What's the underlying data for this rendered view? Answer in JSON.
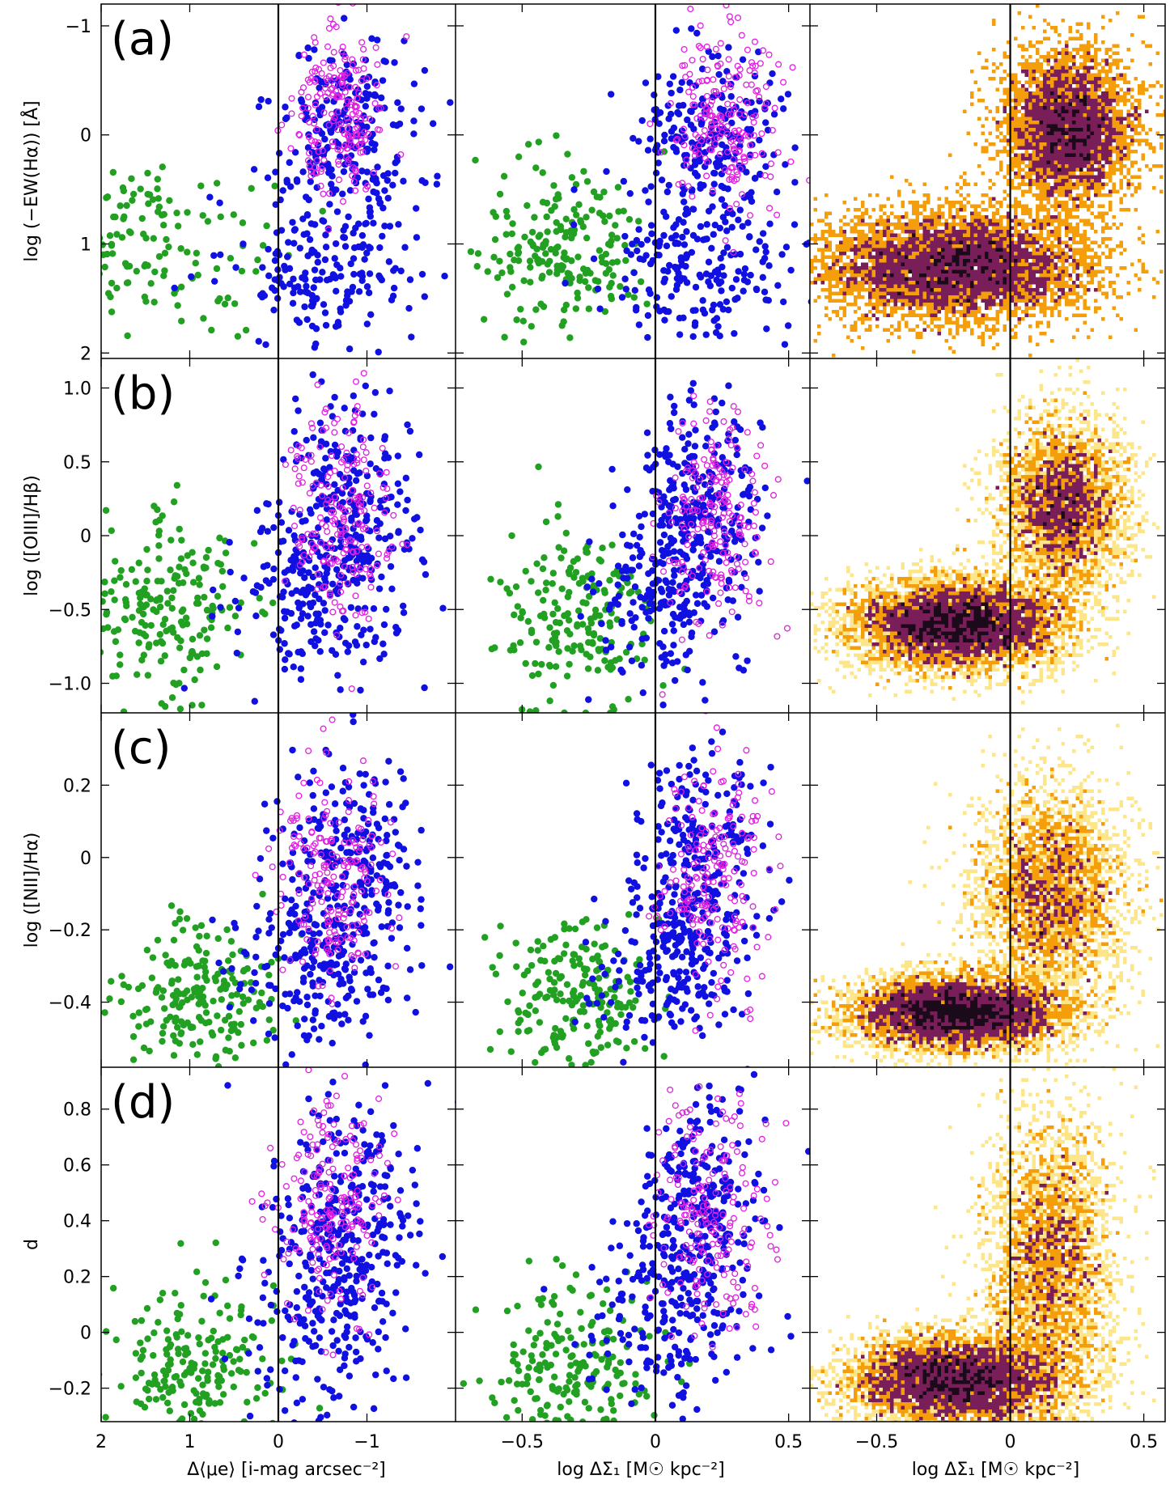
{
  "chart_data": {
    "type": "scatter",
    "layout": {
      "rows": 4,
      "cols": 3,
      "shared_x_per_column": true,
      "shared_y_per_row": true
    },
    "colors": {
      "green": "#22a022",
      "blue": "#1010e0",
      "magenta_open": "#e020e0",
      "density_low": "#fde68a",
      "density_mid": "#f59e0b",
      "density_high": "#7a1e5a",
      "density_max": "#1a0a1a",
      "divider": "#000000"
    },
    "columns": [
      {
        "name": "col1",
        "xlabel": "Δ⟨μe⟩ [i-mag arcsec⁻²]",
        "xlim": [
          2,
          -2
        ],
        "xticks": [
          2,
          1,
          0,
          -1
        ],
        "xtick_labels": [
          "2",
          "1",
          "0",
          "−1"
        ],
        "xreversed": true,
        "vline": 0
      },
      {
        "name": "col2",
        "xlabel": "log ΔΣ₁ [M☉ kpc⁻²]",
        "xlim": [
          -0.75,
          0.58
        ],
        "xticks": [
          -0.5,
          0,
          0.5
        ],
        "xtick_labels": [
          "−0.5",
          "0",
          "0.5"
        ],
        "vline": 0
      },
      {
        "name": "col3",
        "xlabel": "log ΔΣ₁ [M☉ kpc⁻²]",
        "xlim": [
          -0.75,
          0.58
        ],
        "xticks": [
          -0.5,
          0,
          0.5
        ],
        "xtick_labels": [
          "−0.5",
          "0",
          "0.5"
        ],
        "vline": 0,
        "panel_style": "density"
      }
    ],
    "rows": [
      {
        "label": "(a)",
        "ylabel": "log (−EW(Hα)) [Å]",
        "ylim": [
          2.05,
          -1.2
        ],
        "yreversed": true,
        "yticks": [
          -1,
          0,
          1,
          2
        ],
        "ytick_labels": [
          "−1",
          "0",
          "1",
          "2"
        ],
        "groups": {
          "green": {
            "x1": [
              1.7,
              0.8
            ],
            "x2": [
              -0.35,
              -0.15
            ],
            "y": [
              1.05,
              0.4
            ],
            "n": 200
          },
          "blue_low": {
            "x1": [
              -0.6,
              0.55
            ],
            "x2": [
              0.15,
              0.18
            ],
            "y": [
              1.2,
              0.35
            ],
            "n": 200
          },
          "blue_high": {
            "x1": [
              -0.8,
              0.4
            ],
            "x2": [
              0.2,
              0.15
            ],
            "y": [
              0.0,
              0.4
            ],
            "n": 230
          },
          "magenta": {
            "x1": [
              -0.65,
              0.25
            ],
            "x2": [
              0.25,
              0.1
            ],
            "y": [
              -0.15,
              0.4
            ],
            "n": 200
          }
        },
        "density": [
          {
            "x": -0.2,
            "y": 1.2,
            "sx": 0.25,
            "sy": 0.25,
            "w": 1.0
          },
          {
            "x": 0.22,
            "y": -0.05,
            "sx": 0.12,
            "sy": 0.35,
            "w": 0.7
          }
        ]
      },
      {
        "label": "(b)",
        "ylabel": "log ([OIII]/Hβ)",
        "ylim": [
          -1.2,
          1.2
        ],
        "yticks": [
          -1.0,
          -0.5,
          0,
          0.5,
          1.0
        ],
        "ytick_labels": [
          "−1.0",
          "−0.5",
          "0",
          "0.5",
          "1.0"
        ],
        "groups": {
          "green": {
            "x1": [
              1.2,
              0.45
            ],
            "x2": [
              -0.3,
              -0.15
            ],
            "y": [
              -0.55,
              0.3
            ],
            "n": 200
          },
          "blue_low": {
            "x1": [
              -0.5,
              0.45
            ],
            "x2": [
              0.05,
              0.14
            ],
            "y": [
              -0.4,
              0.3
            ],
            "n": 200
          },
          "blue_high": {
            "x1": [
              -0.8,
              0.4
            ],
            "x2": [
              0.18,
              0.12
            ],
            "y": [
              0.2,
              0.35
            ],
            "n": 230
          },
          "magenta": {
            "x1": [
              -0.7,
              0.3
            ],
            "x2": [
              0.22,
              0.1
            ],
            "y": [
              0.15,
              0.35
            ],
            "n": 200
          }
        },
        "density": [
          {
            "x": -0.2,
            "y": -0.6,
            "sx": 0.2,
            "sy": 0.15,
            "w": 1.0
          },
          {
            "x": 0.2,
            "y": 0.2,
            "sx": 0.12,
            "sy": 0.3,
            "w": 0.6
          }
        ]
      },
      {
        "label": "(c)",
        "ylabel": "log ([NII]/Hα)",
        "ylim": [
          -0.58,
          0.4
        ],
        "yticks": [
          -0.4,
          -0.2,
          0,
          0.2
        ],
        "ytick_labels": [
          "−0.4",
          "−0.2",
          "0",
          "0.2"
        ],
        "groups": {
          "green": {
            "x1": [
              0.9,
              0.45
            ],
            "x2": [
              -0.3,
              -0.15
            ],
            "y": [
              -0.38,
              0.1
            ],
            "n": 200
          },
          "blue_low": {
            "x1": [
              -0.5,
              0.45
            ],
            "x2": [
              0.05,
              0.14
            ],
            "y": [
              -0.3,
              0.12
            ],
            "n": 200
          },
          "blue_high": {
            "x1": [
              -0.8,
              0.4
            ],
            "x2": [
              0.18,
              0.12
            ],
            "y": [
              0.0,
              0.15
            ],
            "n": 230
          },
          "magenta": {
            "x1": [
              -0.6,
              0.3
            ],
            "x2": [
              0.22,
              0.1
            ],
            "y": [
              -0.05,
              0.15
            ],
            "n": 200
          }
        },
        "density": [
          {
            "x": -0.2,
            "y": -0.43,
            "sx": 0.2,
            "sy": 0.05,
            "w": 1.0
          },
          {
            "x": 0.15,
            "y": -0.1,
            "sx": 0.14,
            "sy": 0.15,
            "w": 0.55
          }
        ]
      },
      {
        "label": "(d)",
        "ylabel": "d",
        "ylim": [
          -0.32,
          0.95
        ],
        "yticks": [
          -0.2,
          0,
          0.2,
          0.4,
          0.6,
          0.8
        ],
        "ytick_labels": [
          "−0.2",
          "0",
          "0.2",
          "0.4",
          "0.6",
          "0.8"
        ],
        "groups": {
          "green": {
            "x1": [
              0.9,
              0.5
            ],
            "x2": [
              -0.3,
              -0.15
            ],
            "y": [
              -0.12,
              0.15
            ],
            "n": 200
          },
          "blue_low": {
            "x1": [
              -0.5,
              0.45
            ],
            "x2": [
              0.05,
              0.14
            ],
            "y": [
              0.1,
              0.2
            ],
            "n": 200
          },
          "blue_high": {
            "x1": [
              -0.8,
              0.4
            ],
            "x2": [
              0.18,
              0.12
            ],
            "y": [
              0.45,
              0.2
            ],
            "n": 230
          },
          "magenta": {
            "x1": [
              -0.6,
              0.3
            ],
            "x2": [
              0.2,
              0.1
            ],
            "y": [
              0.45,
              0.2
            ],
            "n": 200
          }
        },
        "density": [
          {
            "x": -0.2,
            "y": -0.17,
            "sx": 0.2,
            "sy": 0.08,
            "w": 1.0
          },
          {
            "x": 0.15,
            "y": 0.25,
            "sx": 0.12,
            "sy": 0.25,
            "w": 0.55
          }
        ]
      }
    ]
  }
}
